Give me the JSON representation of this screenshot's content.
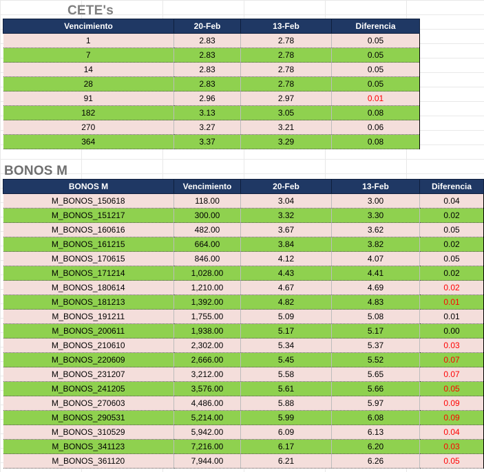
{
  "cetes": {
    "title": "CETE's",
    "headers": [
      "Vencimiento",
      "20-Feb",
      "13-Feb",
      "Diferencia"
    ],
    "rows": [
      {
        "venc": "1",
        "a": "2.83",
        "b": "2.78",
        "diff": "0.05",
        "neg": false
      },
      {
        "venc": "7",
        "a": "2.83",
        "b": "2.78",
        "diff": "0.05",
        "neg": false
      },
      {
        "venc": "14",
        "a": "2.83",
        "b": "2.78",
        "diff": "0.05",
        "neg": false
      },
      {
        "venc": "28",
        "a": "2.83",
        "b": "2.78",
        "diff": "0.05",
        "neg": false
      },
      {
        "venc": "91",
        "a": "2.96",
        "b": "2.97",
        "diff": "0.01",
        "neg": true
      },
      {
        "venc": "182",
        "a": "3.13",
        "b": "3.05",
        "diff": "0.08",
        "neg": false
      },
      {
        "venc": "270",
        "a": "3.27",
        "b": "3.21",
        "diff": "0.06",
        "neg": false
      },
      {
        "venc": "364",
        "a": "3.37",
        "b": "3.29",
        "diff": "0.08",
        "neg": false
      }
    ]
  },
  "bonos": {
    "title": "BONOS M",
    "headers": [
      "BONOS M",
      "Vencimiento",
      "20-Feb",
      "13-Feb",
      "Diferencia"
    ],
    "rows": [
      {
        "name": "M_BONOS_150618",
        "venc": "118.00",
        "a": "3.04",
        "b": "3.00",
        "diff": "0.04",
        "neg": false
      },
      {
        "name": "M_BONOS_151217",
        "venc": "300.00",
        "a": "3.32",
        "b": "3.30",
        "diff": "0.02",
        "neg": false
      },
      {
        "name": "M_BONOS_160616",
        "venc": "482.00",
        "a": "3.67",
        "b": "3.62",
        "diff": "0.05",
        "neg": false
      },
      {
        "name": "M_BONOS_161215",
        "venc": "664.00",
        "a": "3.84",
        "b": "3.82",
        "diff": "0.02",
        "neg": false
      },
      {
        "name": "M_BONOS_170615",
        "venc": "846.00",
        "a": "4.12",
        "b": "4.07",
        "diff": "0.05",
        "neg": false
      },
      {
        "name": "M_BONOS_171214",
        "venc": "1,028.00",
        "a": "4.43",
        "b": "4.41",
        "diff": "0.02",
        "neg": false
      },
      {
        "name": "M_BONOS_180614",
        "venc": "1,210.00",
        "a": "4.67",
        "b": "4.69",
        "diff": "0.02",
        "neg": true
      },
      {
        "name": "M_BONOS_181213",
        "venc": "1,392.00",
        "a": "4.82",
        "b": "4.83",
        "diff": "0.01",
        "neg": true
      },
      {
        "name": "M_BONOS_191211",
        "venc": "1,755.00",
        "a": "5.09",
        "b": "5.08",
        "diff": "0.01",
        "neg": false
      },
      {
        "name": "M_BONOS_200611",
        "venc": "1,938.00",
        "a": "5.17",
        "b": "5.17",
        "diff": "0.00",
        "neg": false
      },
      {
        "name": "M_BONOS_210610",
        "venc": "2,302.00",
        "a": "5.34",
        "b": "5.37",
        "diff": "0.03",
        "neg": true
      },
      {
        "name": "M_BONOS_220609",
        "venc": "2,666.00",
        "a": "5.45",
        "b": "5.52",
        "diff": "0.07",
        "neg": true
      },
      {
        "name": "M_BONOS_231207",
        "venc": "3,212.00",
        "a": "5.58",
        "b": "5.65",
        "diff": "0.07",
        "neg": true
      },
      {
        "name": "M_BONOS_241205",
        "venc": "3,576.00",
        "a": "5.61",
        "b": "5.66",
        "diff": "0.05",
        "neg": true
      },
      {
        "name": "M_BONOS_270603",
        "venc": "4,486.00",
        "a": "5.88",
        "b": "5.97",
        "diff": "0.09",
        "neg": true
      },
      {
        "name": "M_BONOS_290531",
        "venc": "5,214.00",
        "a": "5.99",
        "b": "6.08",
        "diff": "0.09",
        "neg": true
      },
      {
        "name": "M_BONOS_310529",
        "venc": "5,942.00",
        "a": "6.09",
        "b": "6.13",
        "diff": "0.04",
        "neg": true
      },
      {
        "name": "M_BONOS_341123",
        "venc": "7,216.00",
        "a": "6.17",
        "b": "6.20",
        "diff": "0.03",
        "neg": true
      },
      {
        "name": "M_BONOS_361120",
        "venc": "7,944.00",
        "a": "6.21",
        "b": "6.26",
        "diff": "0.05",
        "neg": true
      }
    ]
  },
  "colors": {
    "header_bg": "#1f3864",
    "row_pink": "#f4dedb",
    "row_green": "#8fd14f",
    "negative_text": "#ff0000",
    "title_gray": "#7f7f7f"
  }
}
